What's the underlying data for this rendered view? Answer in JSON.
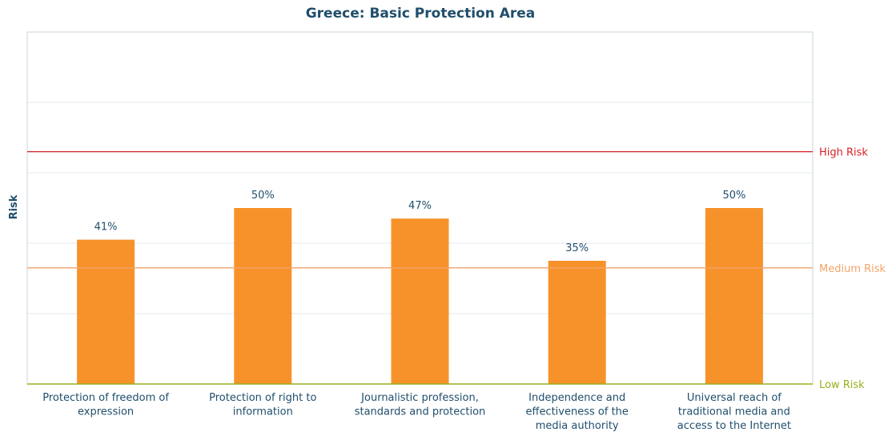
{
  "chart_data": {
    "type": "bar",
    "title": "Greece: Basic Protection Area",
    "ylabel": "Risk",
    "xlabel": "",
    "ylim": [
      0,
      100
    ],
    "grid": true,
    "categories": [
      [
        "Protection of freedom of",
        "expression"
      ],
      [
        "Protection of right to",
        "information"
      ],
      [
        "Journalistic profession,",
        "standards and protection"
      ],
      [
        "Independence and",
        "effectiveness of the",
        "media authority"
      ],
      [
        "Universal reach of",
        "traditional media and",
        "access to the Internet"
      ]
    ],
    "values": [
      41,
      50,
      47,
      35,
      50
    ],
    "value_labels": [
      "41%",
      "50%",
      "47%",
      "35%",
      "50%"
    ],
    "bar_color": "#f7922b",
    "thresholds": [
      {
        "label": "High Risk",
        "value": 66,
        "color": "#d81f26"
      },
      {
        "label": "Medium Risk",
        "value": 33,
        "color": "#f4a36b"
      },
      {
        "label": "Low Risk",
        "value": 0,
        "color": "#9aae1c"
      }
    ]
  }
}
